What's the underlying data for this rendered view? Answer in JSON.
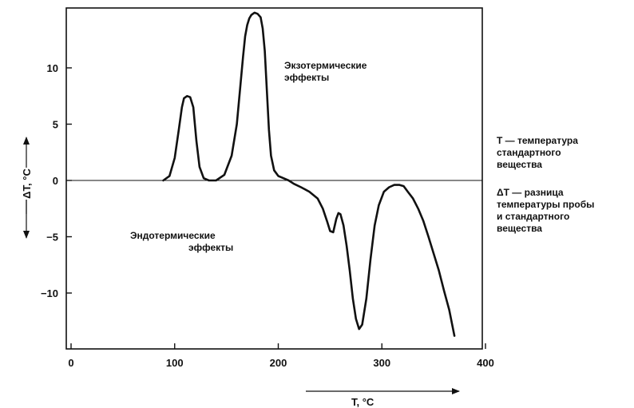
{
  "chart_data": {
    "type": "line",
    "title": "",
    "xlabel": "T, °C",
    "ylabel": "ΔT, °C",
    "xlim": [
      0,
      400
    ],
    "ylim": [
      -15,
      15
    ],
    "x_ticks": [
      0,
      100,
      200,
      300,
      400
    ],
    "y_ticks": [
      10,
      5,
      0,
      -5,
      -10
    ],
    "grid": false,
    "series": [
      {
        "x": [
          89,
          95,
          100,
          104,
          107,
          109,
          112,
          115,
          118,
          121,
          124,
          128,
          133,
          140,
          148,
          155,
          160,
          163,
          166,
          168,
          170,
          172,
          174,
          177,
          180,
          183,
          185,
          187,
          189,
          191,
          193,
          196,
          200,
          205,
          210,
          215,
          222,
          230,
          238,
          243,
          247,
          250,
          253,
          256,
          258,
          260,
          263,
          266,
          269,
          272,
          275,
          278,
          281,
          285,
          289,
          293,
          297,
          302,
          307,
          312,
          317,
          321,
          325,
          330,
          335,
          340,
          345,
          350,
          355,
          360,
          365,
          370
        ],
        "y": [
          0,
          0.4,
          2.0,
          4.5,
          6.5,
          7.3,
          7.5,
          7.4,
          6.5,
          3.5,
          1.2,
          0.2,
          0,
          0,
          0.5,
          2.2,
          5.0,
          8.0,
          11.0,
          12.8,
          13.8,
          14.4,
          14.7,
          14.9,
          14.8,
          14.5,
          13.5,
          11.5,
          8.0,
          4.5,
          2.2,
          0.9,
          0.4,
          0.2,
          0,
          -0.3,
          -0.6,
          -1.0,
          -1.6,
          -2.5,
          -3.6,
          -4.5,
          -4.6,
          -3.4,
          -2.9,
          -3.0,
          -4.0,
          -5.8,
          -8.0,
          -10.5,
          -12.3,
          -13.2,
          -12.8,
          -10.5,
          -7.0,
          -4.0,
          -2.2,
          -1.0,
          -0.6,
          -0.4,
          -0.4,
          -0.5,
          -1.0,
          -1.6,
          -2.5,
          -3.6,
          -5.0,
          -6.5,
          -8.0,
          -9.8,
          -11.5,
          -13.8
        ]
      }
    ]
  },
  "annotations": {
    "exo_line1": "Экзотермические",
    "exo_line2": "эффекты",
    "endo_line1": "Эндотермические",
    "endo_line2": "эффекты"
  },
  "legend": {
    "t_line1": "Т — температура",
    "t_line2": "стандартного",
    "t_line3": "вещества",
    "dt_line1": "ΔТ — разница",
    "dt_line2": "температуры пробы",
    "dt_line3": "и стандартного",
    "dt_line4": "вещества"
  }
}
